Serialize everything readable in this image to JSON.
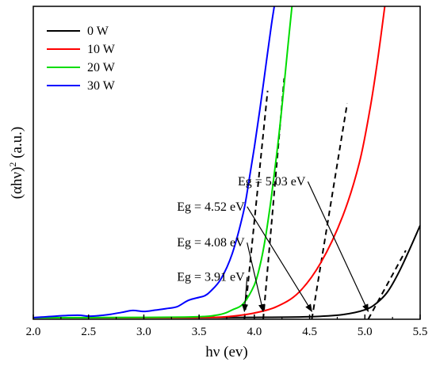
{
  "chart_data": {
    "type": "line",
    "xlabel": "hν (ev)",
    "ylabel_main": "(αhν)",
    "ylabel_sup": "2",
    "ylabel_suffix": " (a.u.)",
    "xlim": [
      2.0,
      5.5
    ],
    "ylim": [
      0,
      100
    ],
    "x_ticks": [
      "2.0",
      "2.5",
      "3.0",
      "3.5",
      "4.0",
      "4.5",
      "5.0",
      "5.5"
    ],
    "y_ticks_labeled": false,
    "legend_position": "top-left",
    "series": [
      {
        "name": "0 W",
        "color": "#000000",
        "x": [
          2.0,
          3.0,
          4.0,
          4.5,
          4.8,
          5.0,
          5.1,
          5.2,
          5.3,
          5.4,
          5.5
        ],
        "y": [
          0.5,
          0.5,
          0.6,
          0.8,
          1.5,
          3.0,
          5.0,
          8.5,
          14.5,
          22.0,
          30.0
        ]
      },
      {
        "name": "10 W",
        "color": "#ff0000",
        "x": [
          2.0,
          3.0,
          3.6,
          3.8,
          4.0,
          4.2,
          4.4,
          4.6,
          4.8,
          4.95,
          5.05,
          5.12,
          5.18
        ],
        "y": [
          0.5,
          0.5,
          0.6,
          1.0,
          2.0,
          4.0,
          8.5,
          18.0,
          33.0,
          50.0,
          68.0,
          84.0,
          100.0
        ]
      },
      {
        "name": "20 W",
        "color": "#00dd00",
        "x": [
          2.0,
          3.0,
          3.5,
          3.7,
          3.8,
          3.9,
          4.0,
          4.05,
          4.1,
          4.15,
          4.2,
          4.25,
          4.3,
          4.34
        ],
        "y": [
          0.5,
          0.6,
          0.8,
          1.6,
          3.0,
          5.0,
          11.0,
          17.0,
          26.0,
          38.0,
          52.0,
          68.0,
          86.0,
          100.0
        ]
      },
      {
        "name": "30 W",
        "color": "#0000ff",
        "x": [
          2.0,
          2.2,
          2.4,
          2.5,
          2.6,
          2.7,
          2.8,
          2.9,
          3.0,
          3.1,
          3.2,
          3.3,
          3.4,
          3.5,
          3.55,
          3.6,
          3.7,
          3.8,
          3.9,
          3.95,
          4.0,
          4.05,
          4.1,
          4.15,
          4.18
        ],
        "y": [
          0.5,
          1.0,
          1.3,
          1.0,
          1.2,
          1.6,
          2.2,
          2.8,
          2.5,
          2.9,
          3.4,
          4.0,
          6.0,
          7.0,
          7.5,
          8.8,
          13.0,
          21.0,
          34.0,
          44.0,
          55.0,
          67.0,
          80.0,
          93.0,
          100.0
        ]
      }
    ],
    "tangents": [
      {
        "name": "0 W tangent",
        "x": [
          5.03,
          5.37
        ],
        "y": [
          0,
          22
        ]
      },
      {
        "name": "10 W tangent",
        "x": [
          4.52,
          4.84
        ],
        "y": [
          0,
          69
        ]
      },
      {
        "name": "20 W tangent",
        "x": [
          4.08,
          4.27
        ],
        "y": [
          0,
          77
        ]
      },
      {
        "name": "30 W tangent",
        "x": [
          3.91,
          4.12
        ],
        "y": [
          0,
          73
        ]
      }
    ],
    "annotations": [
      {
        "text": "Eg = 5.03 eV",
        "label_x": 3.85,
        "label_y": 44,
        "arrow_to_x": 5.03,
        "arrow_to_y": 2.5
      },
      {
        "text": "Eg = 4.52 eV",
        "label_x": 3.3,
        "label_y": 36,
        "arrow_to_x": 4.52,
        "arrow_to_y": 2.5
      },
      {
        "text": "Eg = 4.08 eV",
        "label_x": 3.3,
        "label_y": 24.5,
        "arrow_to_x": 4.08,
        "arrow_to_y": 2.5
      },
      {
        "text": "Eg = 3.91 eV",
        "label_x": 3.3,
        "label_y": 13.5,
        "arrow_to_x": 3.91,
        "arrow_to_y": 2.5
      }
    ]
  }
}
